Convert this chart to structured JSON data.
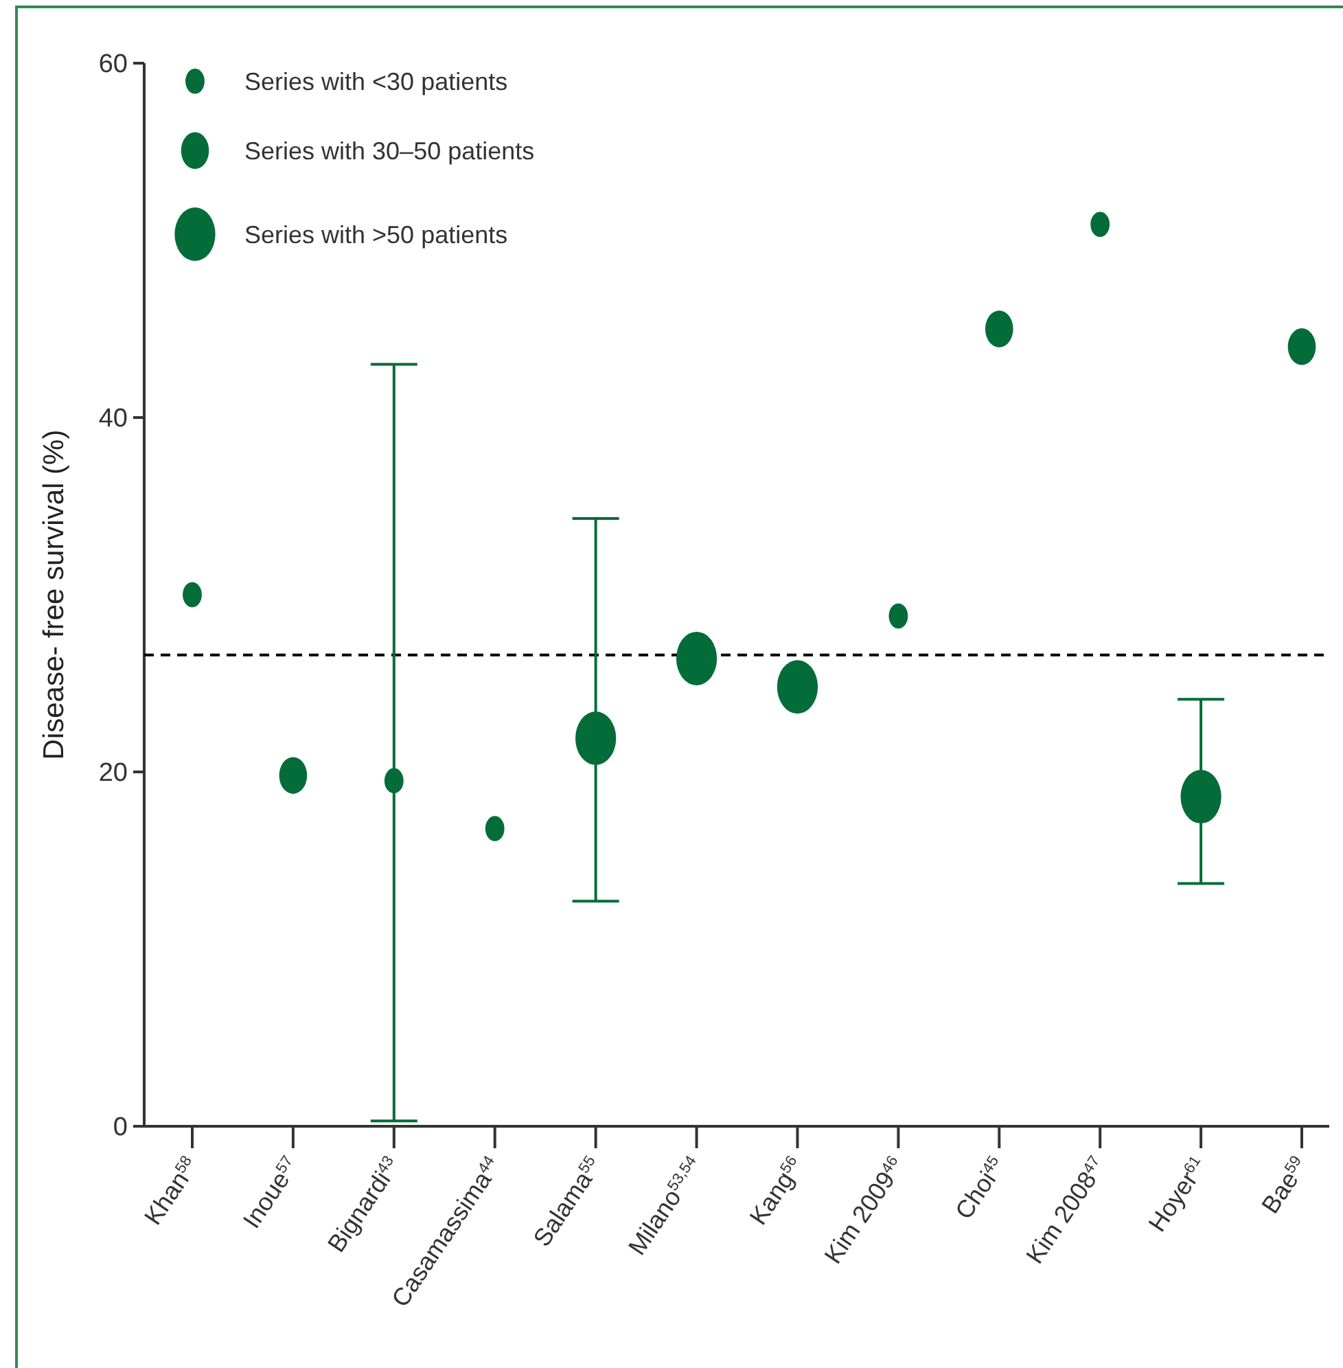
{
  "chart_data": {
    "type": "bubble",
    "ylabel": "Disease- free survival (%)",
    "categories": [
      "Khan$^{58}$",
      "Inoue$^{57}$",
      "Bignardi$^{43}$",
      "Casamassima$^{44}$",
      "Salama$^{55}$",
      "Milano$^{53,54}$",
      "Kang$^{56}$",
      "Kim 2009$^{46}$",
      "Choi$^{45}$",
      "Kim 2008$^{47}$",
      "Hoyer$^{61}$",
      "Bae$^{59}$"
    ],
    "values": [
      30,
      19.8,
      19.5,
      16.8,
      21.9,
      26.4,
      24.8,
      28.8,
      45,
      50.9,
      18.6,
      44
    ],
    "sizes": [
      0.22,
      0.47,
      0.22,
      0.22,
      1,
      1,
      1,
      0.22,
      0.47,
      0.22,
      1,
      0.47
    ],
    "errors": [
      null,
      null,
      [
        0.3,
        43
      ],
      null,
      [
        12.7,
        34.3
      ],
      null,
      null,
      null,
      null,
      null,
      [
        13.7,
        24.1
      ],
      null
    ],
    "size_legend": [
      {
        "value": 0.22,
        "label": "Series with <30 patients"
      },
      {
        "value": 0.47,
        "label": "Series with 30–50 patients"
      },
      {
        "value": 1,
        "label": "Series with >50 patients"
      }
    ],
    "color": "#046c38",
    "marker": "circle",
    "ylim": [
      0,
      60
    ],
    "yticks": [
      0,
      20,
      40,
      60
    ],
    "ref_lines": [
      {
        "axis": "y",
        "value": 26.6,
        "line_style": "dashed",
        "color": "#000000"
      }
    ]
  }
}
